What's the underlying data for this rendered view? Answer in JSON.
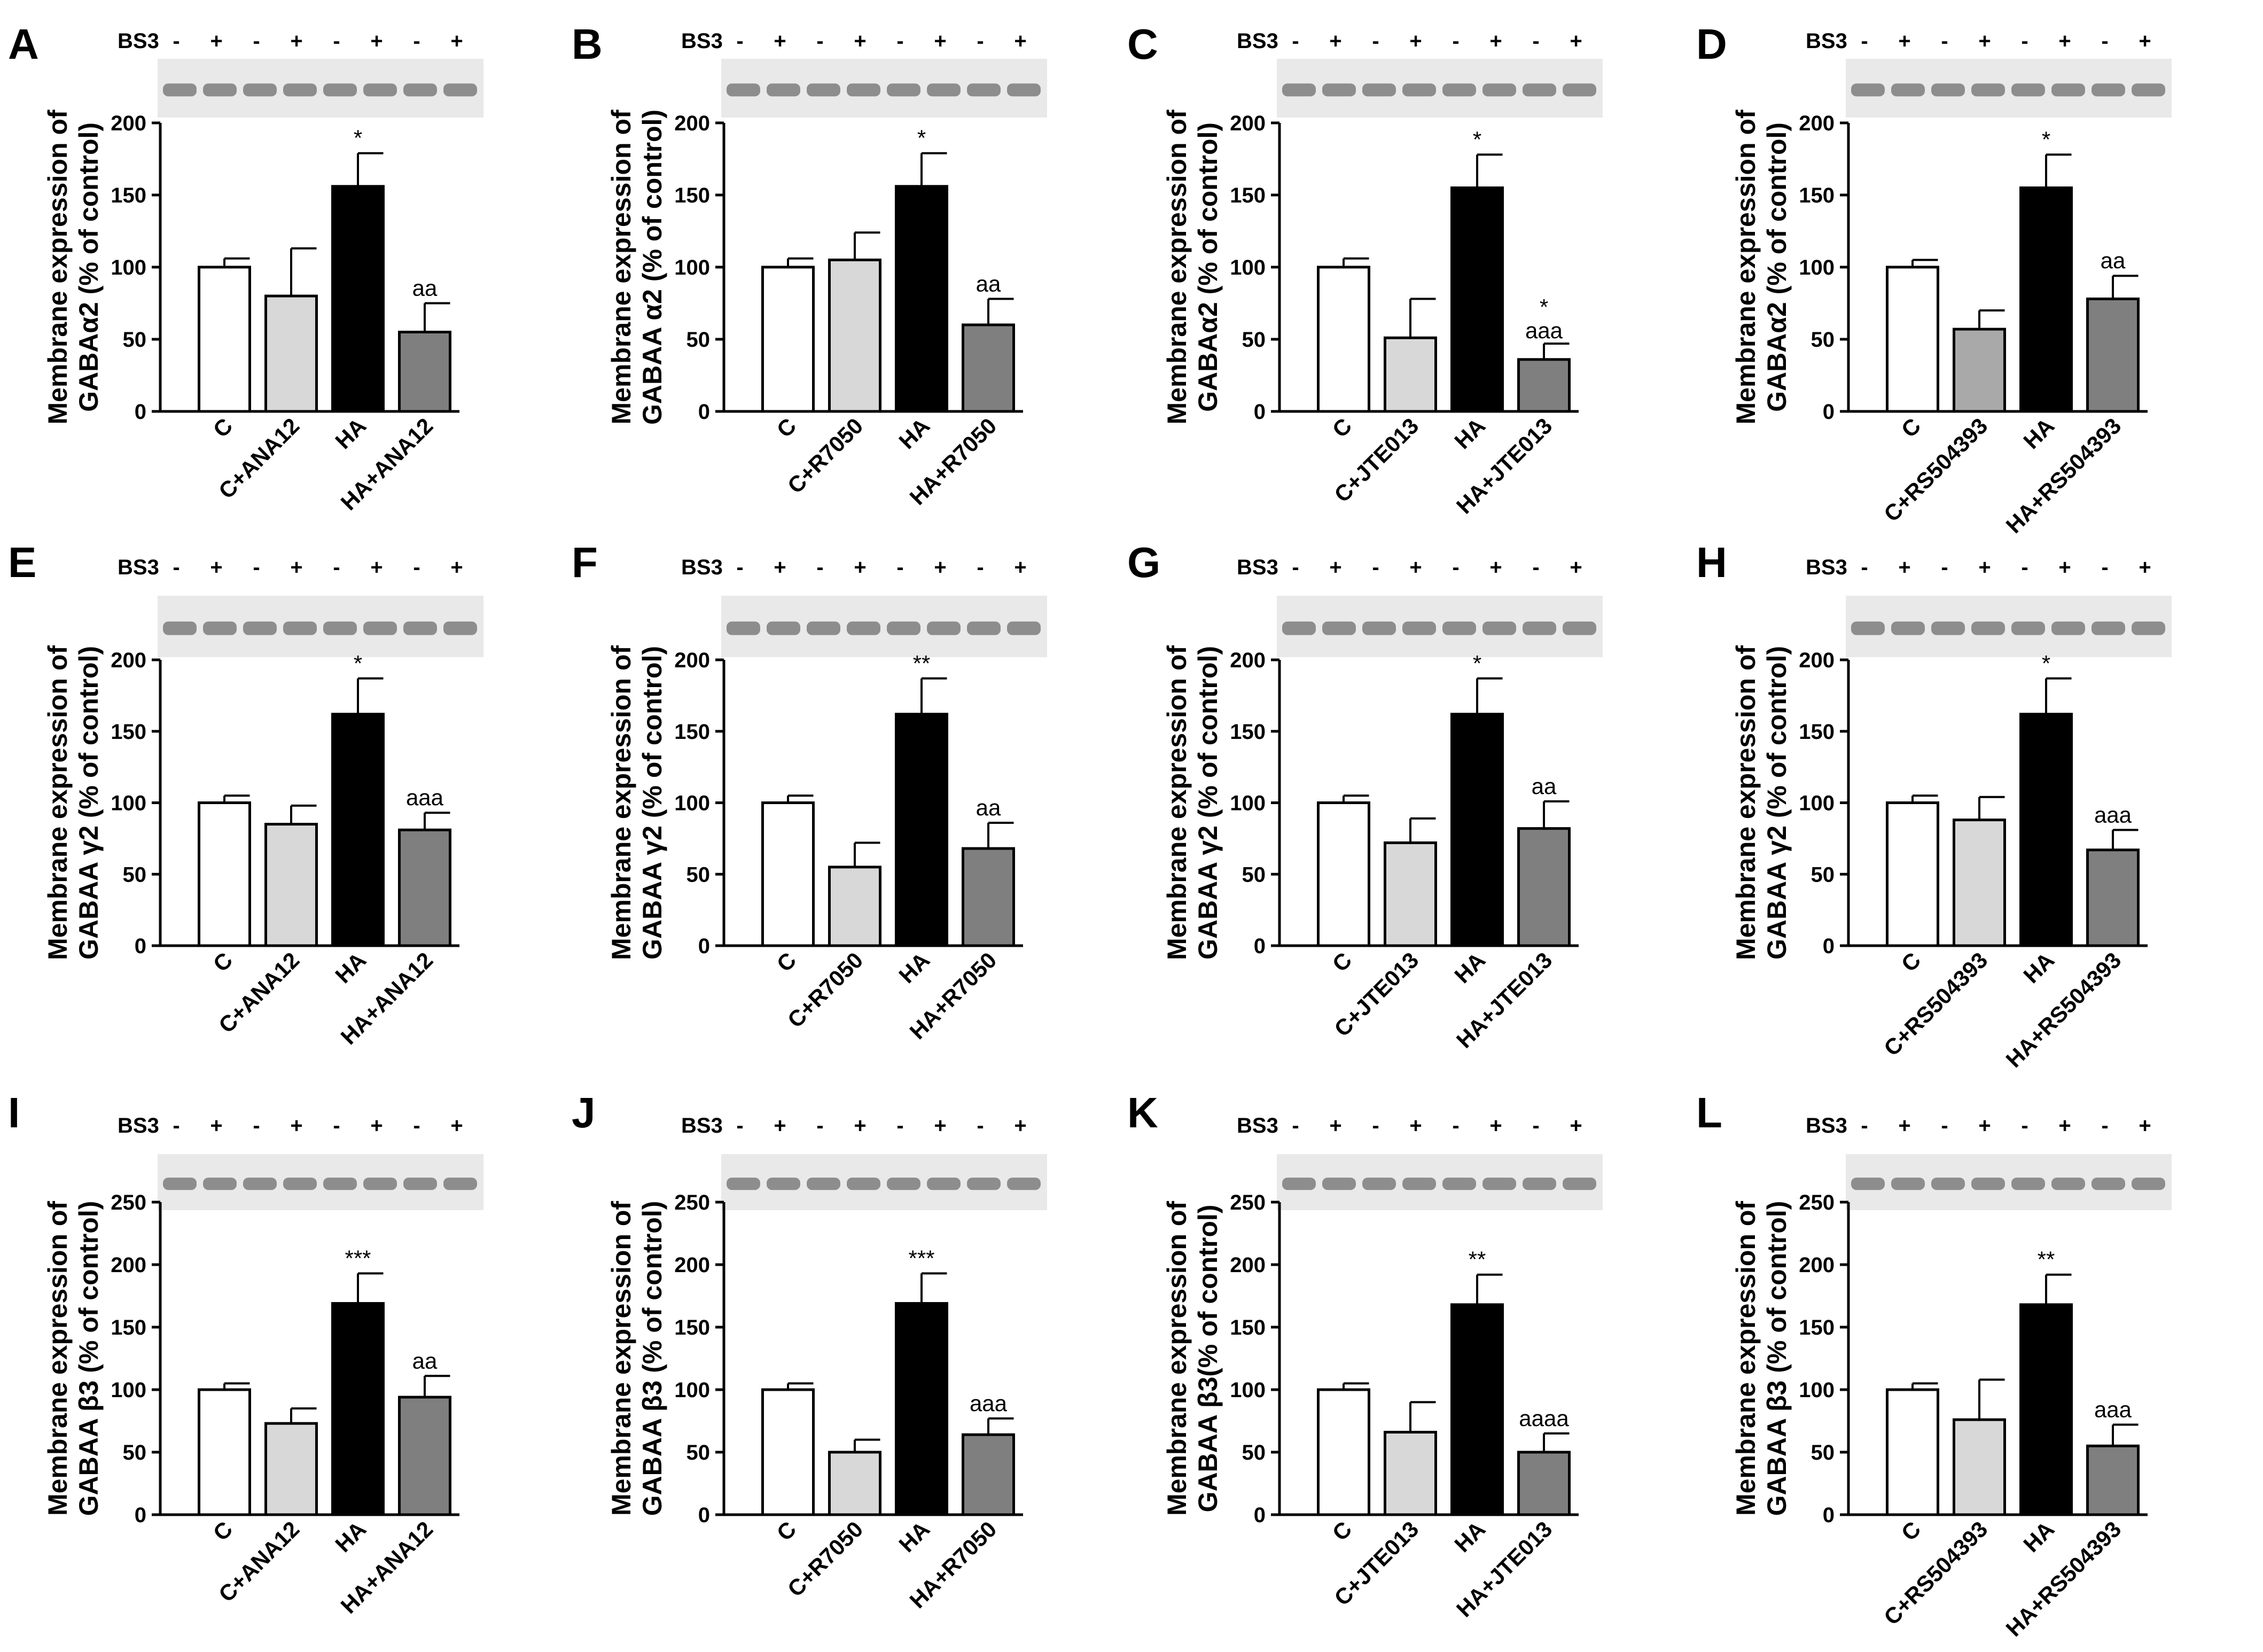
{
  "figure": {
    "bs3_label": "BS3",
    "bs3_signs": [
      "-",
      "+",
      "-",
      "+",
      "-",
      "+",
      "-",
      "+"
    ]
  },
  "colors": {
    "C": "#ffffff",
    "treated": "#d8d8d8",
    "treated_alt": "#a9a9a9",
    "HA": "#000000",
    "HA_treated": "#7f7f7f",
    "blot_bg": "#e9e9e9",
    "band": "#6e6e6e"
  },
  "chart_data": [
    {
      "panel": "A",
      "type": "bar",
      "ylabel_line1": "Membrane expression of",
      "ylabel_line2": "GABAα2 (% of control)",
      "categories": [
        "C",
        "C+ANA12",
        "HA",
        "HA+ANA12"
      ],
      "values": [
        100,
        80,
        156,
        55
      ],
      "errors": [
        6,
        33,
        23,
        20
      ],
      "annotations": [
        "",
        "",
        "*",
        "aa"
      ],
      "ylim": [
        0,
        200
      ],
      "yticks": [
        0,
        50,
        100,
        150,
        200
      ],
      "ytick_labels": [
        "0",
        "50",
        "100",
        "150",
        "200"
      ]
    },
    {
      "panel": "B",
      "type": "bar",
      "ylabel_line1": "Membrane expression of",
      "ylabel_line2": "GABAA α2 (% of control)",
      "categories": [
        "C",
        "C+R7050",
        "HA",
        "HA+R7050"
      ],
      "values": [
        100,
        105,
        156,
        60
      ],
      "errors": [
        6,
        19,
        23,
        18
      ],
      "annotations": [
        "",
        "",
        "*",
        "aa"
      ],
      "ylim": [
        0,
        200
      ],
      "yticks": [
        0,
        50,
        100,
        150,
        200
      ],
      "ytick_labels": [
        "0",
        "50",
        "100",
        "150",
        "200"
      ]
    },
    {
      "panel": "C",
      "type": "bar",
      "ylabel_line1": "Membrane expression of",
      "ylabel_line2": "GABAα2 (% of control)",
      "categories": [
        "C",
        "C+JTE013",
        "HA",
        "HA+JTE013"
      ],
      "values": [
        100,
        51,
        155,
        36
      ],
      "errors": [
        6,
        27,
        23,
        11
      ],
      "annotations": [
        "",
        "",
        "*",
        "*\naaa"
      ],
      "ylim": [
        0,
        200
      ],
      "yticks": [
        0,
        50,
        100,
        150,
        200
      ],
      "ytick_labels": [
        "0",
        "50",
        "100",
        "150",
        "200"
      ]
    },
    {
      "panel": "D",
      "type": "bar",
      "ylabel_line1": "Membrane expression of",
      "ylabel_line2": "GABAα2 (% of control)",
      "categories": [
        "C",
        "C+RS504393",
        "HA",
        "HA+RS504393"
      ],
      "values": [
        100,
        57,
        155,
        78
      ],
      "errors": [
        5,
        13,
        23,
        16
      ],
      "annotations": [
        "",
        "",
        "*",
        "aa"
      ],
      "ylim": [
        0,
        200
      ],
      "yticks": [
        0,
        50,
        100,
        150,
        200
      ],
      "ytick_labels": [
        "0",
        "50",
        "100",
        "150",
        "200"
      ]
    },
    {
      "panel": "E",
      "type": "bar",
      "ylabel_line1": "Membrane expression of",
      "ylabel_line2": "GABAA γ2 (% of control)",
      "categories": [
        "C",
        "C+ANA12",
        "HA",
        "HA+ANA12"
      ],
      "values": [
        100,
        85,
        162,
        81
      ],
      "errors": [
        5,
        13,
        25,
        12
      ],
      "annotations": [
        "",
        "",
        "*",
        "aaa"
      ],
      "ylim": [
        0,
        200
      ],
      "yticks": [
        0,
        50,
        100,
        150,
        200
      ],
      "ytick_labels": [
        "0",
        "50",
        "100",
        "150",
        "200"
      ]
    },
    {
      "panel": "F",
      "type": "bar",
      "ylabel_line1": "Membrane expression of",
      "ylabel_line2": "GABAA γ2 (% of control)",
      "categories": [
        "C",
        "C+R7050",
        "HA",
        "HA+R7050"
      ],
      "values": [
        100,
        55,
        162,
        68
      ],
      "errors": [
        5,
        17,
        25,
        18
      ],
      "annotations": [
        "",
        "",
        "**",
        "aa"
      ],
      "ylim": [
        0,
        200
      ],
      "yticks": [
        0,
        50,
        100,
        150,
        200
      ],
      "ytick_labels": [
        "0",
        "50",
        "100",
        "150",
        "200"
      ]
    },
    {
      "panel": "G",
      "type": "bar",
      "ylabel_line1": "Membrane expression of",
      "ylabel_line2": "GABAA γ2 (% of control)",
      "categories": [
        "C",
        "C+JTE013",
        "HA",
        "HA+JTE013"
      ],
      "values": [
        100,
        72,
        162,
        82
      ],
      "errors": [
        5,
        17,
        25,
        19
      ],
      "annotations": [
        "",
        "",
        "*",
        "aa"
      ],
      "ylim": [
        0,
        200
      ],
      "yticks": [
        0,
        50,
        100,
        150,
        200
      ],
      "ytick_labels": [
        "0",
        "50",
        "100",
        "150",
        "200"
      ]
    },
    {
      "panel": "H",
      "type": "bar",
      "ylabel_line1": "Membrane expression of",
      "ylabel_line2": "GABAA γ2 (% of control)",
      "categories": [
        "C",
        "C+RS504393",
        "HA",
        "HA+RS504393"
      ],
      "values": [
        100,
        88,
        162,
        67
      ],
      "errors": [
        5,
        16,
        25,
        14
      ],
      "annotations": [
        "",
        "",
        "*",
        "aaa"
      ],
      "ylim": [
        0,
        200
      ],
      "yticks": [
        0,
        50,
        100,
        150,
        200
      ],
      "ytick_labels": [
        "0",
        "50",
        "100",
        "150",
        "200"
      ]
    },
    {
      "panel": "I",
      "type": "bar",
      "ylabel_line1": "Membrane expression of",
      "ylabel_line2": "GABAA β3 (% of control)",
      "categories": [
        "C",
        "C+ANA12",
        "HA",
        "HA+ANA12"
      ],
      "values": [
        100,
        73,
        169,
        94
      ],
      "errors": [
        5,
        12,
        24,
        17
      ],
      "annotations": [
        "",
        "",
        "***",
        "aa"
      ],
      "ylim": [
        0,
        250
      ],
      "yticks": [
        0,
        50,
        100,
        150,
        200,
        250
      ],
      "ytick_labels": [
        "0",
        "50",
        "100",
        "150",
        "200",
        "250"
      ]
    },
    {
      "panel": "J",
      "type": "bar",
      "ylabel_line1": "Membrane expression of",
      "ylabel_line2": "GABAA β3 (% of control)",
      "categories": [
        "C",
        "C+R7050",
        "HA",
        "HA+R7050"
      ],
      "values": [
        100,
        50,
        169,
        64
      ],
      "errors": [
        5,
        10,
        24,
        13
      ],
      "annotations": [
        "",
        "",
        "***",
        "aaa"
      ],
      "ylim": [
        0,
        250
      ],
      "yticks": [
        0,
        50,
        100,
        150,
        200,
        250
      ],
      "ytick_labels": [
        "0",
        "50",
        "100",
        "150",
        "200",
        "250"
      ]
    },
    {
      "panel": "K",
      "type": "bar",
      "ylabel_line1": "Membrane expression of",
      "ylabel_line2": "GABAA β3(% of control)",
      "categories": [
        "C",
        "C+JTE013",
        "HA",
        "HA+JTE013"
      ],
      "values": [
        100,
        66,
        168,
        50
      ],
      "errors": [
        5,
        24,
        24,
        15
      ],
      "annotations": [
        "",
        "",
        "**",
        "aaaa"
      ],
      "ylim": [
        0,
        250
      ],
      "yticks": [
        0,
        50,
        100,
        150,
        200,
        250
      ],
      "ytick_labels": [
        "0",
        "50",
        "100",
        "150",
        "200",
        "250"
      ]
    },
    {
      "panel": "L",
      "type": "bar",
      "ylabel_line1": "Membrane expression of",
      "ylabel_line2": "GABAA β3 (% of control)",
      "categories": [
        "C",
        "C+RS504393",
        "HA",
        "HA+RS504393"
      ],
      "values": [
        100,
        76,
        168,
        55
      ],
      "errors": [
        5,
        32,
        24,
        17
      ],
      "annotations": [
        "",
        "",
        "**",
        "aaa"
      ],
      "ylim": [
        0,
        250
      ],
      "yticks": [
        0,
        50,
        100,
        150,
        200,
        250
      ],
      "ytick_labels": [
        "0",
        "50",
        "100",
        "150",
        "200",
        "250"
      ]
    }
  ]
}
